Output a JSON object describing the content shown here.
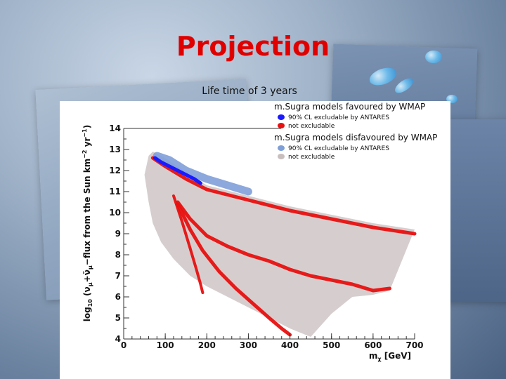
{
  "slide": {
    "title": "Projection",
    "subtitle": "Life time of 3 years"
  },
  "colors": {
    "title": "#e00000",
    "favoured_excludable": "#1a1aff",
    "favoured_not_excludable": "#e81010",
    "disfavoured_excludable": "#7f9fd8",
    "disfavoured_not_excludable": "#c8bebe"
  },
  "chart_data": {
    "type": "scatter",
    "title": "",
    "xlabel": "m_χ [GeV]",
    "ylabel": "log10 (ν_μ+ν̄_μ−flux from the Sun km⁻² yr⁻¹)",
    "xlabel_parts": {
      "main": "m",
      "sub": "χ",
      "unit": " [GeV]"
    },
    "ylabel_parts": {
      "log": "log",
      "log_sub": "10",
      "open": " (",
      "nu": "ν",
      "nu_sub": "μ",
      "plus": "+",
      "nubar": "ν̄",
      "nubar_sub": "μ",
      "rest": "−flux from the Sun km",
      "km_exp": "−2",
      "yr": " yr",
      "yr_exp": "−1",
      "close": ")"
    },
    "xlim": [
      0,
      700
    ],
    "ylim": [
      4,
      14
    ],
    "xticks": [
      "0",
      "100",
      "200",
      "300",
      "400",
      "500",
      "600",
      "700"
    ],
    "yticks": [
      "4",
      "5",
      "6",
      "7",
      "8",
      "9",
      "10",
      "11",
      "12",
      "13",
      "14"
    ],
    "grid": false,
    "legend_position": "top-right",
    "legend": {
      "group1_title": "m.Sugra models favoured by WMAP",
      "group1_items": [
        "90% CL excludable by ANTARES",
        "not excludable"
      ],
      "group2_title": "m.Sugra models disfavoured by WMAP",
      "group2_items": [
        "90% CL excludable by ANTARES",
        "not excludable"
      ]
    },
    "series": [
      {
        "name": "m.Sugra models favoured by WMAP — 90% CL excludable by ANTARES",
        "color": "#1a1aff",
        "x": [
          75,
          90,
          110,
          130,
          150,
          170,
          185
        ],
        "y": [
          12.6,
          12.4,
          12.2,
          12.0,
          11.8,
          11.6,
          11.4
        ]
      },
      {
        "name": "m.Sugra models favoured by WMAP — not excludable",
        "color": "#e81010",
        "curves": [
          {
            "x": [
              70,
              100,
              150,
              200,
              300,
              400,
              500,
              600,
              700
            ],
            "y": [
              12.6,
              12.2,
              11.6,
              11.1,
              10.6,
              10.1,
              9.7,
              9.3,
              9.0
            ]
          },
          {
            "x": [
              130,
              160,
              200,
              250,
              300,
              350,
              400,
              450,
              500,
              550,
              600,
              640
            ],
            "y": [
              10.5,
              9.7,
              8.9,
              8.4,
              8.0,
              7.7,
              7.3,
              7.0,
              6.8,
              6.6,
              6.3,
              6.4
            ]
          },
          {
            "x": [
              130,
              160,
              190,
              230,
              270,
              310,
              350,
              380,
              400
            ],
            "y": [
              10.4,
              9.2,
              8.2,
              7.2,
              6.4,
              5.7,
              5.0,
              4.5,
              4.2
            ]
          },
          {
            "x": [
              120,
              140,
              160,
              175,
              185,
              190
            ],
            "y": [
              10.8,
              9.6,
              8.3,
              7.3,
              6.6,
              6.2
            ]
          }
        ]
      },
      {
        "name": "m.Sugra models disfavoured by WMAP — 90% CL excludable by ANTARES",
        "color": "#7f9fd8",
        "x": [
          80,
          110,
          150,
          200,
          250,
          300
        ],
        "y": [
          12.7,
          12.5,
          12.0,
          11.6,
          11.3,
          11.0
        ]
      },
      {
        "name": "m.Sugra models disfavoured by WMAP — not excludable",
        "color": "#c8bebe",
        "region_upper": {
          "x": [
            50,
            60,
            70,
            100,
            150,
            200,
            300,
            400,
            500,
            600,
            700
          ],
          "y": [
            11.8,
            12.7,
            12.9,
            12.6,
            11.9,
            11.3,
            10.8,
            10.3,
            9.9,
            9.5,
            9.2
          ]
        },
        "region_lower": {
          "x": [
            50,
            60,
            70,
            90,
            120,
            160,
            200,
            250,
            300,
            350,
            400,
            450,
            500,
            550,
            600,
            640
          ],
          "y": [
            11.8,
            10.5,
            9.5,
            8.6,
            7.8,
            7.0,
            6.5,
            6.0,
            5.5,
            5.0,
            4.5,
            4.1,
            5.2,
            6.0,
            6.1,
            6.3
          ]
        }
      }
    ]
  }
}
